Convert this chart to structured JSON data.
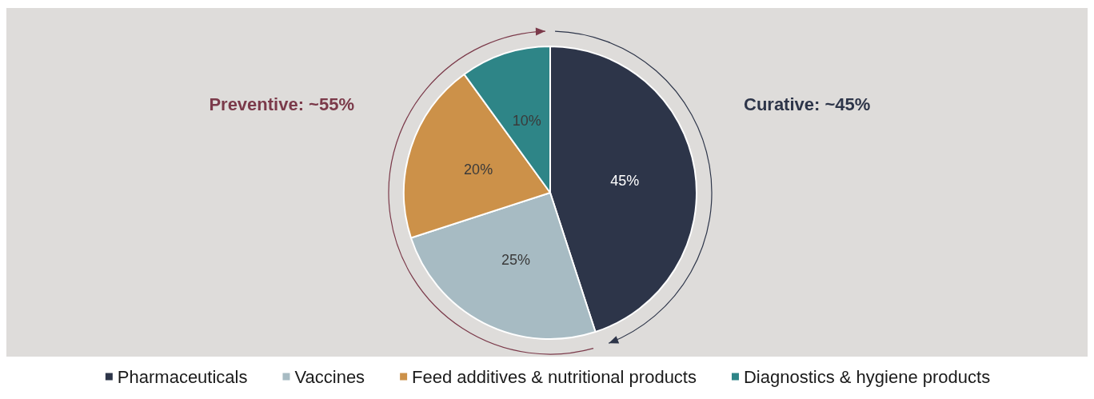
{
  "chart_data": {
    "type": "pie",
    "categories": [
      "Pharmaceuticals",
      "Vaccines",
      "Feed additives & nutritional products",
      "Diagnostics & hygiene products"
    ],
    "values": [
      45,
      25,
      20,
      10
    ],
    "colors": [
      "#2d3549",
      "#a7bbc3",
      "#cc9149",
      "#2e8587"
    ],
    "value_labels": [
      "45%",
      "25%",
      "20%",
      "10%"
    ],
    "annotations": [
      "Preventive: ~55%",
      "Curative: ~45%"
    ],
    "legend": "bottom"
  }
}
